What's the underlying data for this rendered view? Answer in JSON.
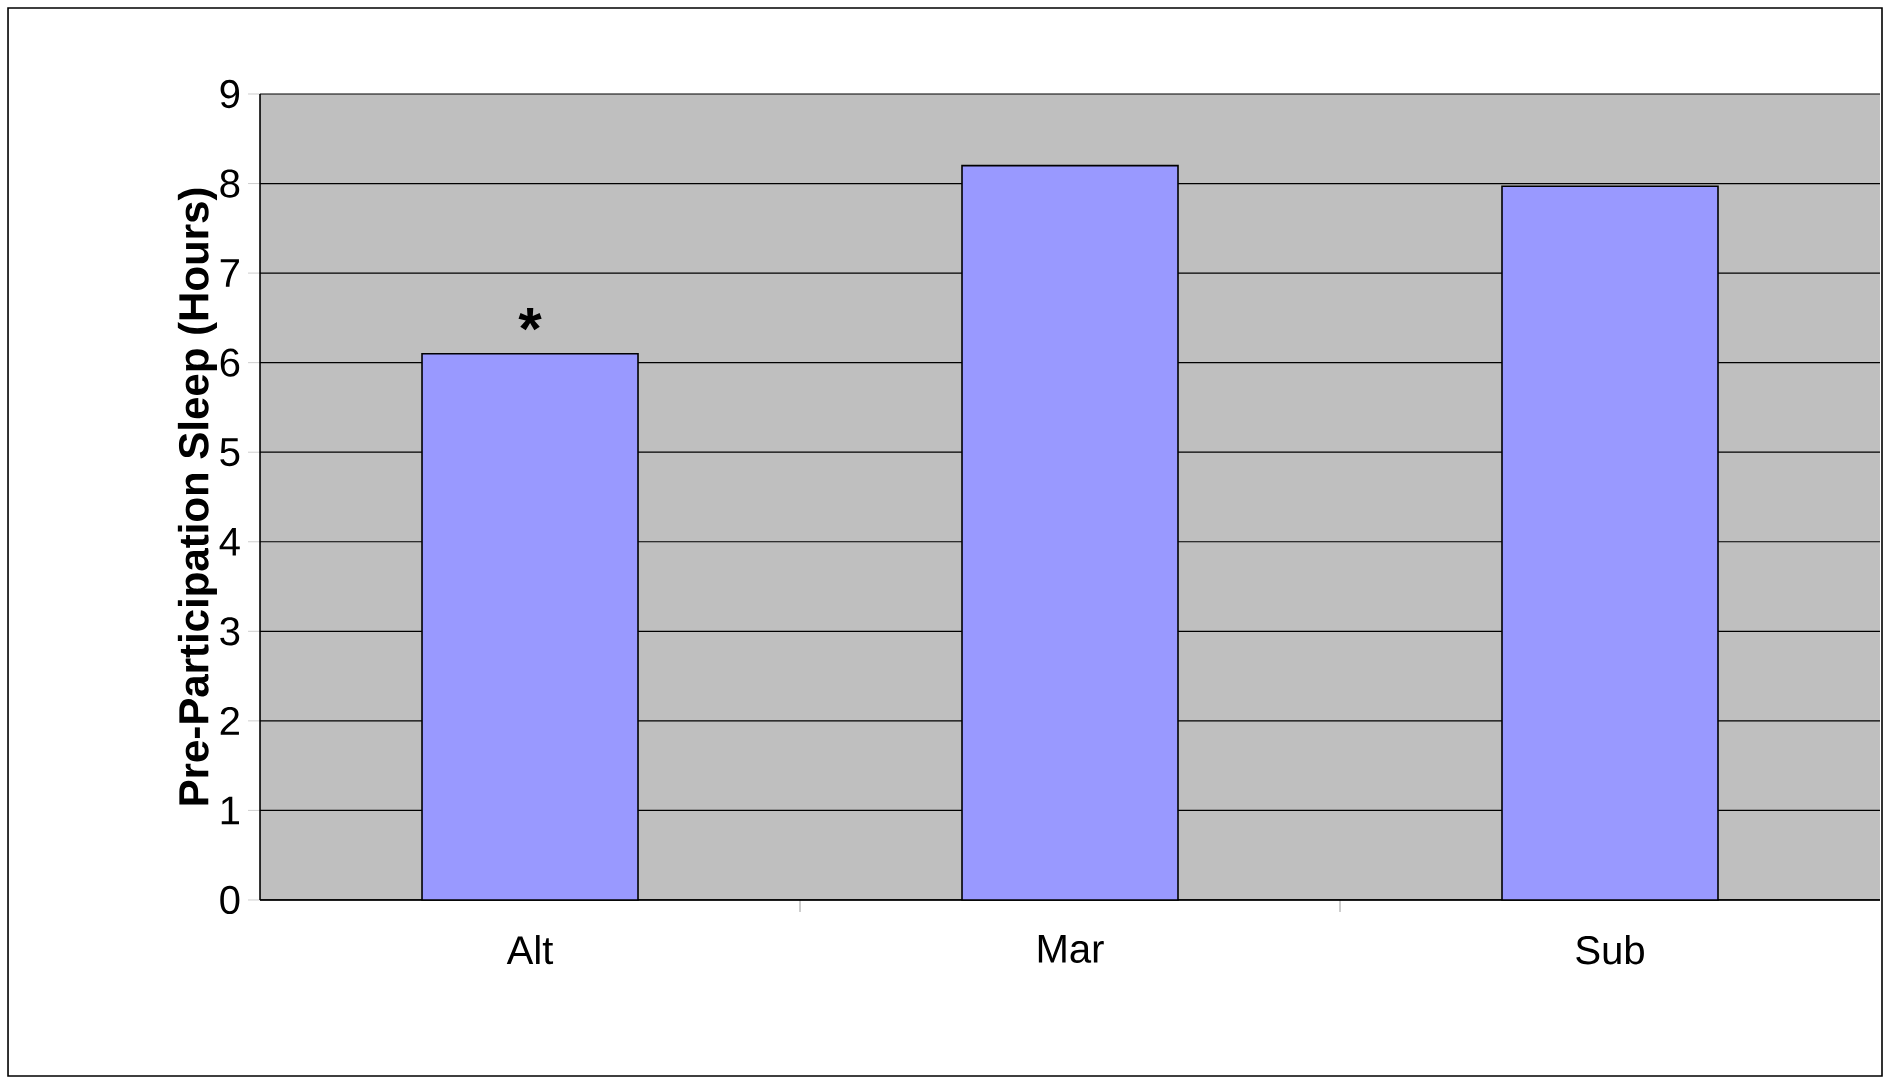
{
  "chart_data": {
    "type": "bar",
    "ylabel": "Pre-Participation Sleep (Hours)",
    "categories": [
      "Alt",
      "Mar",
      "Sub"
    ],
    "values": [
      6.1,
      8.2,
      7.97
    ],
    "color": "#9999ff",
    "ylim": [
      0,
      9
    ],
    "yticks": [
      0,
      1,
      2,
      3,
      4,
      5,
      6,
      7,
      8,
      9
    ],
    "grid": "y",
    "annotations": [
      "*"
    ]
  }
}
